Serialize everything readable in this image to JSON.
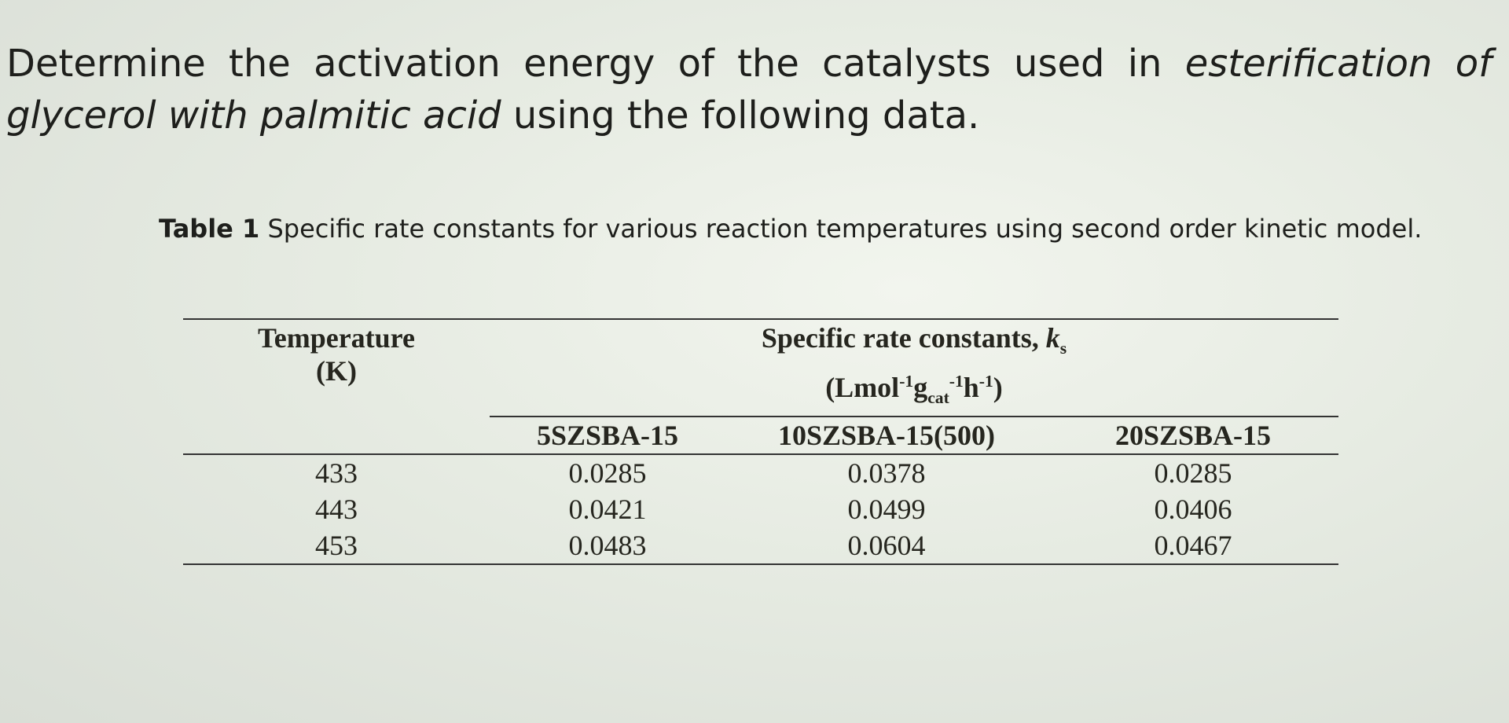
{
  "question": {
    "before": "Determine the activation energy of the catalysts used in ",
    "emphasis": "esterification of glycerol with palmitic acid",
    "after": " using the following data."
  },
  "caption": {
    "label": "Table 1",
    "text": " Specific rate constants for various reaction temperatures using second order kinetic model."
  },
  "table": {
    "header": {
      "temperature": [
        "Temperature",
        "(K)"
      ],
      "rate": {
        "title": "Specific rate constants, ",
        "symbol": "k",
        "symbol_sub": "s",
        "unit": {
          "open": "(Lmol",
          "mol_exp": "-1",
          "g": "g",
          "g_sub": "cat",
          "g_exp": "-1",
          "h": "h",
          "h_exp": "-1",
          "close": ")"
        }
      },
      "columns": [
        "5SZSBA-15",
        "10SZSBA-15(500)",
        "20SZSBA-15"
      ]
    },
    "rows": [
      [
        433,
        0.0285,
        0.0378,
        0.0285
      ],
      [
        443,
        0.0421,
        0.0499,
        0.0406
      ],
      [
        453,
        0.0483,
        0.0604,
        0.0467
      ]
    ]
  }
}
